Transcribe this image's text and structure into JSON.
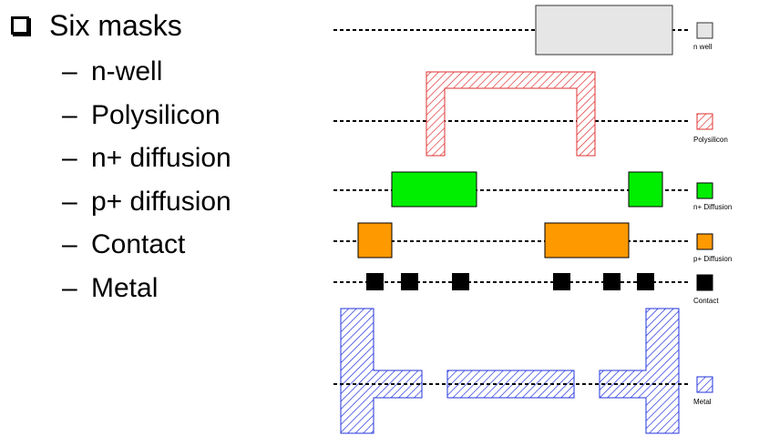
{
  "title": "Six masks",
  "masks": [
    {
      "label": "n-well"
    },
    {
      "label": "Polysilicon"
    },
    {
      "label": "n+ diffusion"
    },
    {
      "label": "p+ diffusion"
    },
    {
      "label": "Contact"
    },
    {
      "label": "Metal"
    }
  ],
  "legend": [
    {
      "key": "nwell",
      "label": "n well",
      "fill": "#e6e6e6",
      "stroke": "#333333",
      "pattern": "none"
    },
    {
      "key": "poly",
      "label": "Polysilicon",
      "fill": "#ffffff",
      "stroke": "#e03030",
      "pattern": "hatch-red"
    },
    {
      "key": "ndiff",
      "label": "n+ Diffusion",
      "fill": "#00ee00",
      "stroke": "#000000",
      "pattern": "none"
    },
    {
      "key": "pdiff",
      "label": "p+ Diffusion",
      "fill": "#ff9900",
      "stroke": "#000000",
      "pattern": "none"
    },
    {
      "key": "contact",
      "label": "Contact",
      "fill": "#000000",
      "stroke": "#000000",
      "pattern": "none"
    },
    {
      "key": "metal",
      "label": "Metal",
      "fill": "#ffffff",
      "stroke": "#2233dd",
      "pattern": "hatch-blue"
    }
  ]
}
